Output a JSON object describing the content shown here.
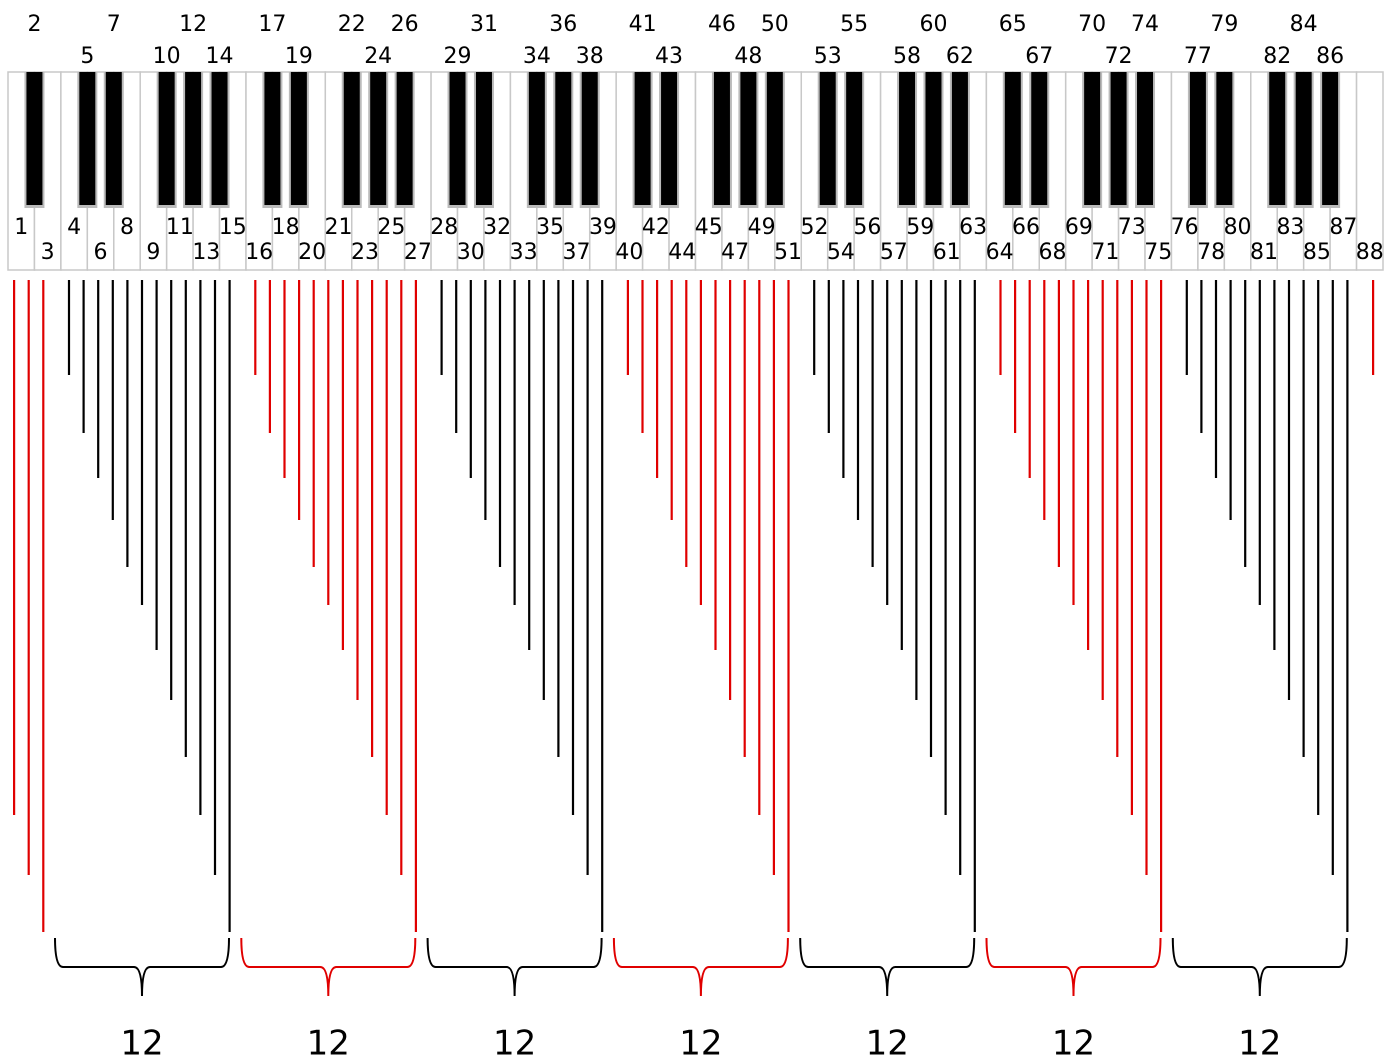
{
  "keys": [
    1,
    2,
    3,
    4,
    5,
    6,
    7,
    8,
    9,
    10,
    11,
    12,
    13,
    14,
    15,
    16,
    17,
    18,
    19,
    20,
    21,
    22,
    23,
    24,
    25,
    26,
    27,
    28,
    29,
    30,
    31,
    32,
    33,
    34,
    35,
    36,
    37,
    38,
    39,
    40,
    41,
    42,
    43,
    44,
    45,
    46,
    47,
    48,
    49,
    50,
    51,
    52,
    53,
    54,
    55,
    56,
    57,
    58,
    59,
    60,
    61,
    62,
    63,
    64,
    65,
    66,
    67,
    68,
    69,
    70,
    71,
    72,
    73,
    74,
    75,
    76,
    77,
    78,
    79,
    80,
    81,
    82,
    83,
    84,
    85,
    86,
    87,
    88
  ],
  "groups": [
    12,
    12,
    12,
    12,
    12,
    12,
    12
  ]
}
